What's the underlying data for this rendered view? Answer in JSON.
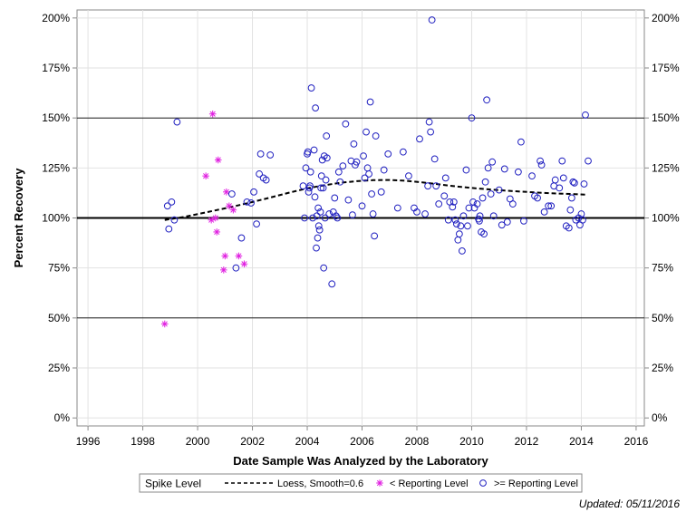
{
  "chart_data": {
    "type": "scatter",
    "title": "",
    "xlabel": "Date Sample Was Analyzed by the Laboratory",
    "ylabel": "Percent Recovery",
    "xlim": [
      1995.6,
      2016.3
    ],
    "ylim": [
      -4,
      204
    ],
    "x_ticks": [
      1996,
      1998,
      2000,
      2002,
      2004,
      2006,
      2008,
      2010,
      2012,
      2014,
      2016
    ],
    "x_tick_labels": [
      "1996",
      "1998",
      "2000",
      "2002",
      "2004",
      "2006",
      "2008",
      "2010",
      "2012",
      "2014",
      "2016"
    ],
    "y_ticks": [
      0,
      25,
      50,
      75,
      100,
      125,
      150,
      175,
      200
    ],
    "y_tick_labels": [
      "0%",
      "25%",
      "50%",
      "75%",
      "100%",
      "125%",
      "150%",
      "175%",
      "200%"
    ],
    "grid": true,
    "reference_lines": [
      {
        "y": 100,
        "style": "thick"
      },
      {
        "y": 50,
        "style": "thin"
      },
      {
        "y": 150,
        "style": "thin"
      }
    ],
    "legend": {
      "title": "Spike Level",
      "placement": "bottom",
      "entries": [
        "Loess, Smooth=0.6",
        "< Reporting Level",
        ">= Reporting Level"
      ]
    },
    "series": [
      {
        "name": "Loess, Smooth=0.6",
        "kind": "line",
        "style": "dashed",
        "color": "#000000",
        "x": [
          1998.8,
          1999.5,
          2000.2,
          2001.0,
          2001.8,
          2002.6,
          2003.3,
          2004.0,
          2004.6,
          2005.2,
          2005.8,
          2006.4,
          2007.0,
          2007.6,
          2008.2,
          2008.8,
          2009.4,
          2010.0,
          2010.6,
          2011.2,
          2011.8,
          2012.4,
          2013.0,
          2013.6,
          2014.2
        ],
        "y": [
          99,
          100.5,
          102.5,
          104.8,
          107.3,
          110,
          112.5,
          114.8,
          116.3,
          117.6,
          118.4,
          118.9,
          119,
          118.6,
          117.8,
          116.8,
          115.8,
          115,
          114.3,
          113.7,
          113.2,
          112.7,
          112.3,
          112,
          111.6
        ]
      },
      {
        "name": "< Reporting Level",
        "kind": "scatter",
        "marker": "star",
        "color": "#e020e0",
        "points": [
          [
            1998.8,
            47
          ],
          [
            2000.3,
            121
          ],
          [
            2000.55,
            152
          ],
          [
            2000.5,
            99
          ],
          [
            2000.65,
            100
          ],
          [
            2000.7,
            93
          ],
          [
            2000.75,
            129
          ],
          [
            2000.95,
            74
          ],
          [
            2001.0,
            81
          ],
          [
            2001.05,
            113
          ],
          [
            2001.15,
            106
          ],
          [
            2001.3,
            104
          ],
          [
            2001.5,
            81
          ],
          [
            2001.7,
            77
          ]
        ]
      },
      {
        "name": ">= Reporting Level",
        "kind": "scatter",
        "marker": "circle",
        "color": "#2020c0",
        "points": [
          [
            1998.9,
            106
          ],
          [
            1998.95,
            94.5
          ],
          [
            1999.05,
            108
          ],
          [
            1999.15,
            99
          ],
          [
            1999.25,
            148
          ],
          [
            2001.25,
            112
          ],
          [
            2001.4,
            75
          ],
          [
            2001.6,
            90
          ],
          [
            2001.8,
            108
          ],
          [
            2001.95,
            107.5
          ],
          [
            2002.05,
            113
          ],
          [
            2002.15,
            97
          ],
          [
            2002.25,
            122
          ],
          [
            2002.3,
            132
          ],
          [
            2002.4,
            120
          ],
          [
            2002.5,
            119
          ],
          [
            2002.65,
            131.5
          ],
          [
            2003.85,
            116
          ],
          [
            2003.9,
            100
          ],
          [
            2003.95,
            125
          ],
          [
            2004.0,
            132
          ],
          [
            2004.02,
            133
          ],
          [
            2004.05,
            113
          ],
          [
            2004.08,
            115
          ],
          [
            2004.1,
            116
          ],
          [
            2004.12,
            123
          ],
          [
            2004.15,
            165
          ],
          [
            2004.2,
            100
          ],
          [
            2004.25,
            134
          ],
          [
            2004.28,
            110.5
          ],
          [
            2004.3,
            155
          ],
          [
            2004.33,
            85
          ],
          [
            2004.35,
            101
          ],
          [
            2004.38,
            90
          ],
          [
            2004.4,
            105
          ],
          [
            2004.42,
            96
          ],
          [
            2004.45,
            94
          ],
          [
            2004.48,
            103
          ],
          [
            2004.5,
            115
          ],
          [
            2004.52,
            121
          ],
          [
            2004.55,
            129
          ],
          [
            2004.58,
            115
          ],
          [
            2004.6,
            75
          ],
          [
            2004.62,
            131
          ],
          [
            2004.65,
            100
          ],
          [
            2004.68,
            119
          ],
          [
            2004.7,
            141
          ],
          [
            2004.72,
            130
          ],
          [
            2004.8,
            102
          ],
          [
            2004.9,
            67
          ],
          [
            2004.95,
            103
          ],
          [
            2005.0,
            110
          ],
          [
            2005.05,
            101
          ],
          [
            2005.1,
            100
          ],
          [
            2005.15,
            123
          ],
          [
            2005.2,
            118
          ],
          [
            2005.3,
            126
          ],
          [
            2005.4,
            147
          ],
          [
            2005.5,
            109
          ],
          [
            2005.6,
            128.5
          ],
          [
            2005.65,
            101.5
          ],
          [
            2005.7,
            137
          ],
          [
            2005.75,
            126.5
          ],
          [
            2005.8,
            128
          ],
          [
            2006.0,
            106
          ],
          [
            2006.05,
            131
          ],
          [
            2006.1,
            120
          ],
          [
            2006.15,
            143
          ],
          [
            2006.2,
            125
          ],
          [
            2006.25,
            122
          ],
          [
            2006.3,
            158
          ],
          [
            2006.35,
            112
          ],
          [
            2006.4,
            102
          ],
          [
            2006.45,
            91
          ],
          [
            2006.5,
            141
          ],
          [
            2006.7,
            113
          ],
          [
            2006.8,
            124
          ],
          [
            2006.95,
            132
          ],
          [
            2007.3,
            105
          ],
          [
            2007.5,
            133
          ],
          [
            2007.7,
            121
          ],
          [
            2007.9,
            105
          ],
          [
            2008.0,
            103
          ],
          [
            2008.1,
            139.5
          ],
          [
            2008.3,
            102
          ],
          [
            2008.4,
            116
          ],
          [
            2008.45,
            148
          ],
          [
            2008.5,
            143
          ],
          [
            2008.55,
            199
          ],
          [
            2008.65,
            129.5
          ],
          [
            2008.7,
            116
          ],
          [
            2008.8,
            107
          ],
          [
            2009.0,
            111
          ],
          [
            2009.05,
            120
          ],
          [
            2009.15,
            99
          ],
          [
            2009.2,
            108
          ],
          [
            2009.3,
            105.5
          ],
          [
            2009.35,
            108
          ],
          [
            2009.4,
            99
          ],
          [
            2009.45,
            97
          ],
          [
            2009.5,
            89
          ],
          [
            2009.55,
            92
          ],
          [
            2009.6,
            96
          ],
          [
            2009.65,
            83.5
          ],
          [
            2009.7,
            101
          ],
          [
            2009.8,
            124
          ],
          [
            2009.85,
            96
          ],
          [
            2009.9,
            105
          ],
          [
            2010.0,
            150
          ],
          [
            2010.05,
            108
          ],
          [
            2010.1,
            105
          ],
          [
            2010.2,
            107
          ],
          [
            2010.25,
            99.5
          ],
          [
            2010.28,
            98.5
          ],
          [
            2010.3,
            101
          ],
          [
            2010.35,
            93
          ],
          [
            2010.4,
            110
          ],
          [
            2010.45,
            92
          ],
          [
            2010.5,
            118
          ],
          [
            2010.55,
            159
          ],
          [
            2010.6,
            125
          ],
          [
            2010.7,
            112
          ],
          [
            2010.75,
            128
          ],
          [
            2010.8,
            101
          ],
          [
            2011.0,
            114
          ],
          [
            2011.1,
            96.5
          ],
          [
            2011.2,
            124.5
          ],
          [
            2011.3,
            98
          ],
          [
            2011.4,
            109.5
          ],
          [
            2011.5,
            107
          ],
          [
            2011.7,
            123
          ],
          [
            2011.8,
            138
          ],
          [
            2011.9,
            98.5
          ],
          [
            2012.2,
            121
          ],
          [
            2012.3,
            111
          ],
          [
            2012.4,
            110
          ],
          [
            2012.5,
            128.5
          ],
          [
            2012.55,
            126.5
          ],
          [
            2012.65,
            103
          ],
          [
            2012.8,
            106
          ],
          [
            2012.9,
            106
          ],
          [
            2013.0,
            116
          ],
          [
            2013.05,
            119
          ],
          [
            2013.2,
            115
          ],
          [
            2013.3,
            128.5
          ],
          [
            2013.35,
            120
          ],
          [
            2013.45,
            96
          ],
          [
            2013.55,
            95
          ],
          [
            2013.6,
            104
          ],
          [
            2013.65,
            110
          ],
          [
            2013.7,
            118
          ],
          [
            2013.75,
            117.5
          ],
          [
            2013.8,
            99
          ],
          [
            2013.9,
            100
          ],
          [
            2013.95,
            96.5
          ],
          [
            2014.0,
            102
          ],
          [
            2014.05,
            99
          ],
          [
            2014.1,
            117
          ],
          [
            2014.15,
            151.5
          ],
          [
            2014.25,
            128.5
          ]
        ]
      }
    ],
    "footnote": "Updated: 05/11/2016"
  },
  "colors": {
    "outer_background": "#ffffff",
    "plot_background": "#ffffff",
    "grid": "#e2e2e2",
    "axis": "#8a8a8a",
    "ref_line": "#000000",
    "star": "#e020e0",
    "circle": "#2020c0"
  }
}
